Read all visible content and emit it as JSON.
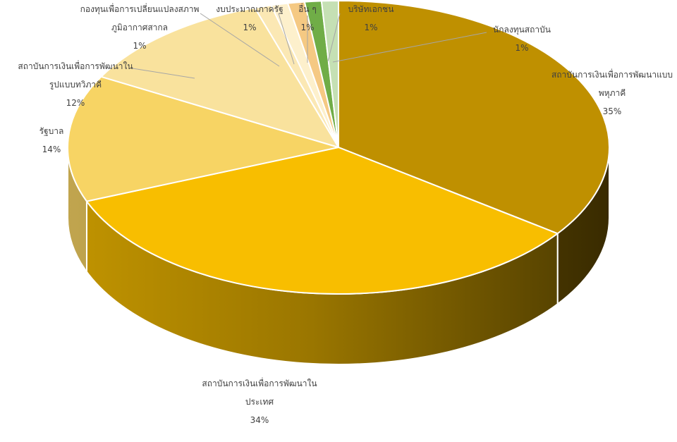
{
  "chart_data": {
    "type": "pie",
    "title": "",
    "slices": [
      {
        "label": "สถาบันการเงินเพื่อการพัฒนาแบบพหุภาคี",
        "label_lines": [
          "สถาบันการเงินเพื่อการพัฒนาแบบ",
          "พหุภาคี"
        ],
        "value": 35,
        "value_label": "35%",
        "color": "#bf9000"
      },
      {
        "label": "สถาบันการเงินเพื่อการพัฒนาในประเทศ",
        "label_lines": [
          "สถาบันการเงินเพื่อการพัฒนาใน",
          "ประเทศ"
        ],
        "value": 34,
        "value_label": "34%",
        "color": "#f8be00"
      },
      {
        "label": "รัฐบาล",
        "label_lines": [
          "รัฐบาล"
        ],
        "value": 14,
        "value_label": "14%",
        "color": "#f7d464"
      },
      {
        "label": "สถาบันการเงินเพื่อการพัฒนาในรูปแบบทวิภาคี",
        "label_lines": [
          "สถาบันการเงินเพื่อการพัฒนาใน",
          "รูปแบบทวิภาคี"
        ],
        "value": 12,
        "value_label": "12%",
        "color": "#f9e29d"
      },
      {
        "label": "กองทุนเพื่อการเปลี่ยนแปลงสภาพภูมิอากาศสากล",
        "label_lines": [
          "กองทุนเพื่อการเปลี่ยนแปลงสภาพ",
          "ภูมิอากาศสากล"
        ],
        "value": 1,
        "value_label": "1%",
        "color": "#fbe8b4"
      },
      {
        "label": "งบประมาณภาครัฐ",
        "label_lines": [
          "งบประมาณภาครัฐ"
        ],
        "value": 1,
        "value_label": "1%",
        "color": "#fdf0cc"
      },
      {
        "label": "อื่น ๆ",
        "label_lines": [
          "อื่น ๆ"
        ],
        "value": 1,
        "value_label": "1%",
        "color": "#f5c983"
      },
      {
        "label": "บริษัทเอกชน",
        "label_lines": [
          "บริษัทเอกชน"
        ],
        "value": 1,
        "value_label": "1%",
        "color": "#70ad47"
      },
      {
        "label": "นักลงทุนสถาบัน",
        "label_lines": [
          "นักลงทุนสถาบัน"
        ],
        "value": 1,
        "value_label": "1%",
        "color": "#c5e0b4"
      }
    ]
  }
}
